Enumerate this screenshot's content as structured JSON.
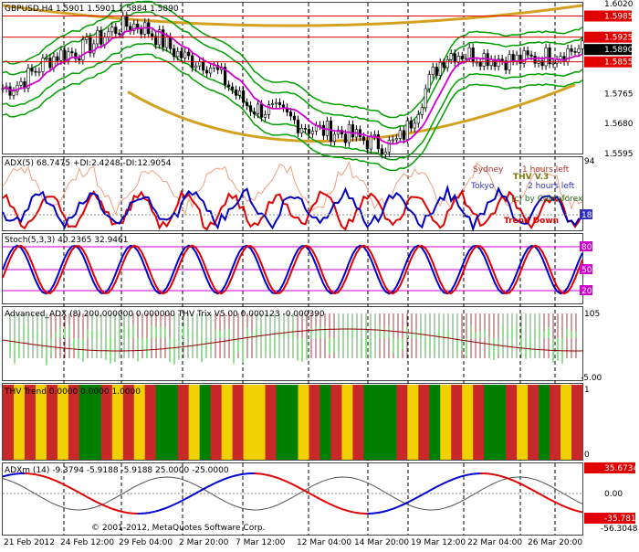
{
  "header": {
    "symbol_info": "GBPUSD,H4  1.5901 1.5901 1.5884 1.5890"
  },
  "price_axis": {
    "ticks": [
      "1.6020",
      "1.5985",
      "1.5925",
      "1.5890",
      "1.5855",
      "1.5765",
      "1.5680",
      "1.5595"
    ],
    "highlighted": {
      "1.5985": "#e00000",
      "1.5925": "#e00000",
      "1.5890": "#000000",
      "1.5855": "#e00000"
    }
  },
  "time_axis": [
    "21 Feb 2012",
    "24 Feb 12:00",
    "29 Feb 04:00",
    "2 Mar 20:00",
    "7 Mar 12:00",
    "12 Mar 04:00",
    "14 Mar 20:00",
    "19 Mar 12:00",
    "22 Mar 04:00",
    "26 Mar 20:00"
  ],
  "copyright": "© 2001-2012, MetaQuotes Software Corp.",
  "panels": {
    "adx": {
      "label": "ADX(5) 68.7475 +DI:2.4248 -DI:12.9054",
      "sessions": {
        "sydney": "Sydney",
        "tokyo": "Tokyo",
        "hours_left_1": "1 hours left",
        "hours_left_2": "2 hours left",
        "brand": "THV V.3",
        "copyright_small": "(c) by Cobraforex",
        "trend_text": "Trend Down"
      },
      "ticks": [
        "94",
        "18"
      ]
    },
    "stoch": {
      "label": "Stoch(5,3,3) 40.2365 32.9461",
      "ticks": [
        "80",
        "50",
        "20"
      ]
    },
    "adv_adx": {
      "label": "Advanced_ADX (8) 200.000000 0.000000  THV Trix V5.00 0.000123 -0.000390",
      "ticks": [
        "105",
        "-5.00"
      ]
    },
    "thv_trend": {
      "label": "THV Trend 0.0000 0.0000 1.0000",
      "ticks": [
        "1",
        "0"
      ]
    },
    "adxm": {
      "label": "ADXm (14) -9.3794 -5.9188 -5.9188 25.0000 -25.0000",
      "ticks": [
        "35.6734",
        "0.00",
        "-35.7818",
        "-56.3048"
      ]
    }
  },
  "chart_data": {
    "type": "line",
    "title": "GBPUSD,H4",
    "x": [
      "21 Feb 2012",
      "24 Feb 12:00",
      "29 Feb 04:00",
      "2 Mar 20:00",
      "7 Mar 12:00",
      "12 Mar 04:00",
      "14 Mar 20:00",
      "19 Mar 12:00",
      "22 Mar 04:00",
      "26 Mar 20:00"
    ],
    "ylim": [
      1.5595,
      1.602
    ],
    "series": [
      {
        "name": "",
        "values": [
          1.578,
          1.588,
          1.596,
          1.586,
          1.572,
          1.566,
          1.562,
          1.588,
          1.586,
          1.589
        ]
      }
    ],
    "horizontal_levels": [
      1.5985,
      1.5925,
      1.5855
    ],
    "colors": {
      "price": "#000000",
      "ma": "#d000d0",
      "bands": "#00a000",
      "outer": "#d4a020",
      "levels": "#e00000"
    }
  }
}
